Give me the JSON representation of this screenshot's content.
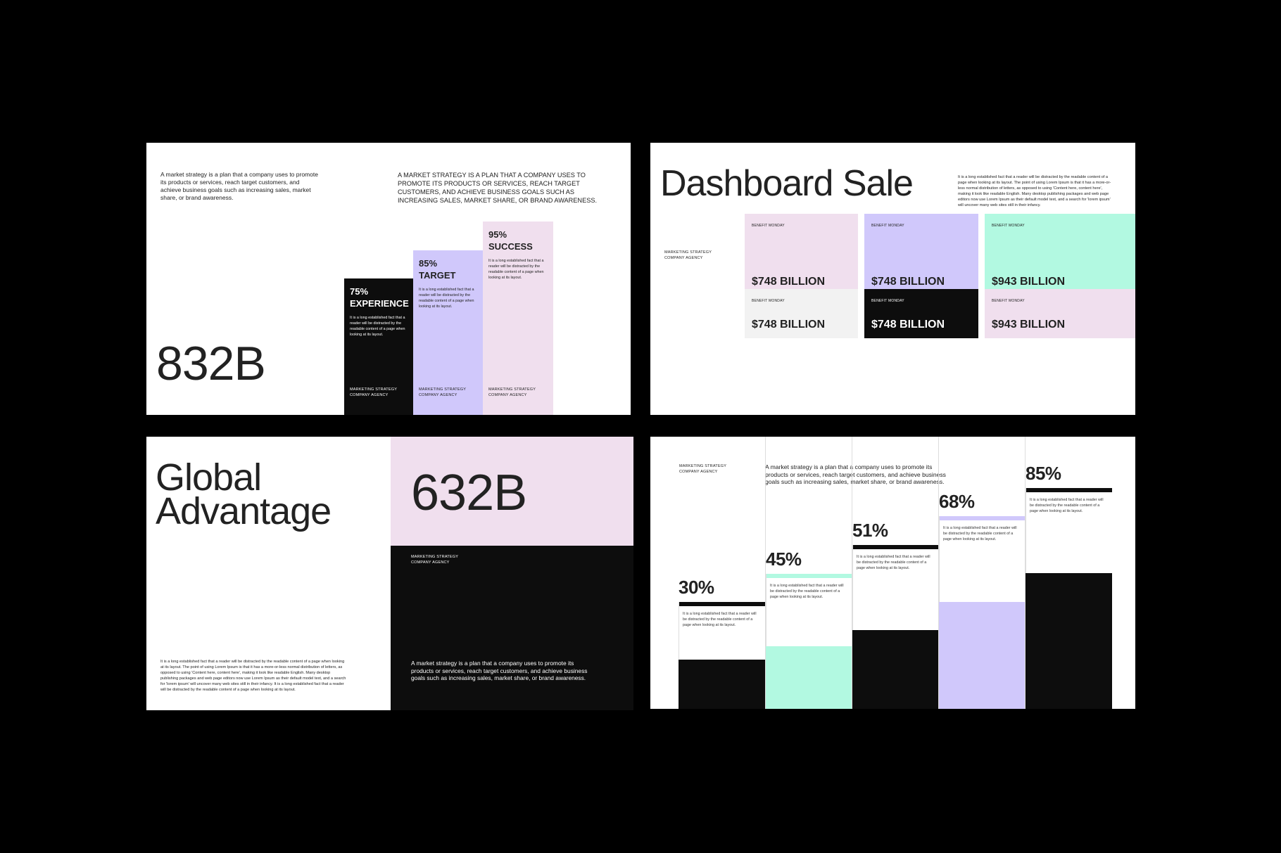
{
  "colors": {
    "pink": "#f0dfee",
    "lavender": "#d0c8fb",
    "mint": "#b2f9e1",
    "black": "#0d0d0d",
    "gray": "#f2f2f2"
  },
  "slide1": {
    "intro": "A market strategy is a plan that a company uses to promote its products or services, reach target customers, and achieve business goals such as increasing sales, market share, or brand awareness.",
    "intro_caps": "A MARKET STRATEGY IS A PLAN THAT A COMPANY USES TO PROMOTE ITS PRODUCTS OR SERVICES, REACH TARGET CUSTOMERS, AND ACHIEVE BUSINESS GOALS SUCH AS INCREASING SALES, MARKET SHARE, OR BRAND AWARENESS.",
    "big_number": "832B",
    "bars": [
      {
        "percent": "75%",
        "title": "EXPERIENCE",
        "value": 75,
        "color": "black",
        "desc": "It is a long established fact that a reader will be distracted by the readable content of a page when looking at its layout.",
        "label": "MARKETING STRATEGY COMPANY AGENCY"
      },
      {
        "percent": "85%",
        "title": "TARGET",
        "value": 85,
        "color": "lavender",
        "desc": "It is a long established fact that a reader will be distracted by the readable content of a page when looking at its layout.",
        "label": "MARKETING STRATEGY COMPANY AGENCY"
      },
      {
        "percent": "95%",
        "title": "SUCCESS",
        "value": 95,
        "color": "pink",
        "desc": "It is a long established fact that a reader will be distracted by the readable content of a page when looking at its layout.",
        "label": "MARKETING STRATEGY COMPANY AGENCY"
      }
    ]
  },
  "slide2": {
    "title": "Dashboard Sale",
    "desc": "It is a long established fact that a reader will be distracted by the readable content of a page when looking at its layout. The point of using Lorem Ipsum is that it has a more-or-less normal distribution of letters, as opposed to using 'Content here, content here', making it look like readable English. Many desktop publishing packages and web page editors now use Lorem Ipsum as their default model text, and a search for 'lorem ipsum' will uncover many web sites still in their infancy.",
    "label": "MARKETING STRATEGY COMPANY AGENCY",
    "cards": [
      {
        "label": "BENEFIT MONDAY",
        "value": "$748 BILLION",
        "color": "pink"
      },
      {
        "label": "BENEFIT MONDAY",
        "value": "$748 BILLION",
        "color": "lavender"
      },
      {
        "label": "BENEFIT MONDAY",
        "value": "$943 BILLION",
        "color": "mint"
      },
      {
        "label": "BENEFIT MONDAY",
        "value": "$748 BILLION",
        "color": "gray"
      },
      {
        "label": "BENEFIT MONDAY",
        "value": "$748 BILLION",
        "color": "black"
      },
      {
        "label": "BENEFIT MONDAY",
        "value": "$943 BILLION",
        "color": "pink"
      }
    ]
  },
  "slide3": {
    "title_line1": "Global",
    "title_line2": "Advantage",
    "big_number": "632B",
    "label": "MARKETING STRATEGY COMPANY AGENCY",
    "body": "It is a long established fact that a reader will be distracted by the readable content of a page when looking at its layout. The point of using Lorem Ipsum is that it has a more-or-less normal distribution of letters, as opposed to using 'Content here, content here', making it look like readable English. Many desktop publishing packages and web page editors now use Lorem Ipsum as their default model text, and a search for 'lorem ipsum' will uncover many web sites still in their infancy. It is a long established fact that a reader will be distracted by the readable content of a page when looking at its layout.",
    "quote": "A market strategy is a plan that a company uses to promote its products or services, reach target customers, and achieve business goals such as increasing sales, market share, or brand awareness."
  },
  "slide4": {
    "label": "MARKETING STRATEGY COMPANY AGENCY",
    "intro": "A market strategy is a plan that a company uses to promote its products or services, reach target customers, and achieve business goals such as increasing sales, market share, or brand awareness.",
    "columns": [
      {
        "percent": "30%",
        "value": 30,
        "accent": "black",
        "fill": "black",
        "desc": "It is a long established fact that a reader will be distracted by the readable content of a page when looking at its layout."
      },
      {
        "percent": "45%",
        "value": 45,
        "accent": "mint",
        "fill": "mint",
        "desc": "It is a long established fact that a reader will be distracted by the readable content of a page when looking at its layout."
      },
      {
        "percent": "51%",
        "value": 51,
        "accent": "black",
        "fill": "black",
        "desc": "It is a long established fact that a reader will be distracted by the readable content of a page when looking at its layout."
      },
      {
        "percent": "68%",
        "value": 68,
        "accent": "lavender",
        "fill": "lavender",
        "desc": "It is a long established fact that a reader will be distracted by the readable content of a page when looking at its layout."
      },
      {
        "percent": "85%",
        "value": 85,
        "accent": "black",
        "fill": "black",
        "desc": "It is a long established fact that a reader will be distracted by the readable content of a page when looking at its layout."
      }
    ]
  }
}
